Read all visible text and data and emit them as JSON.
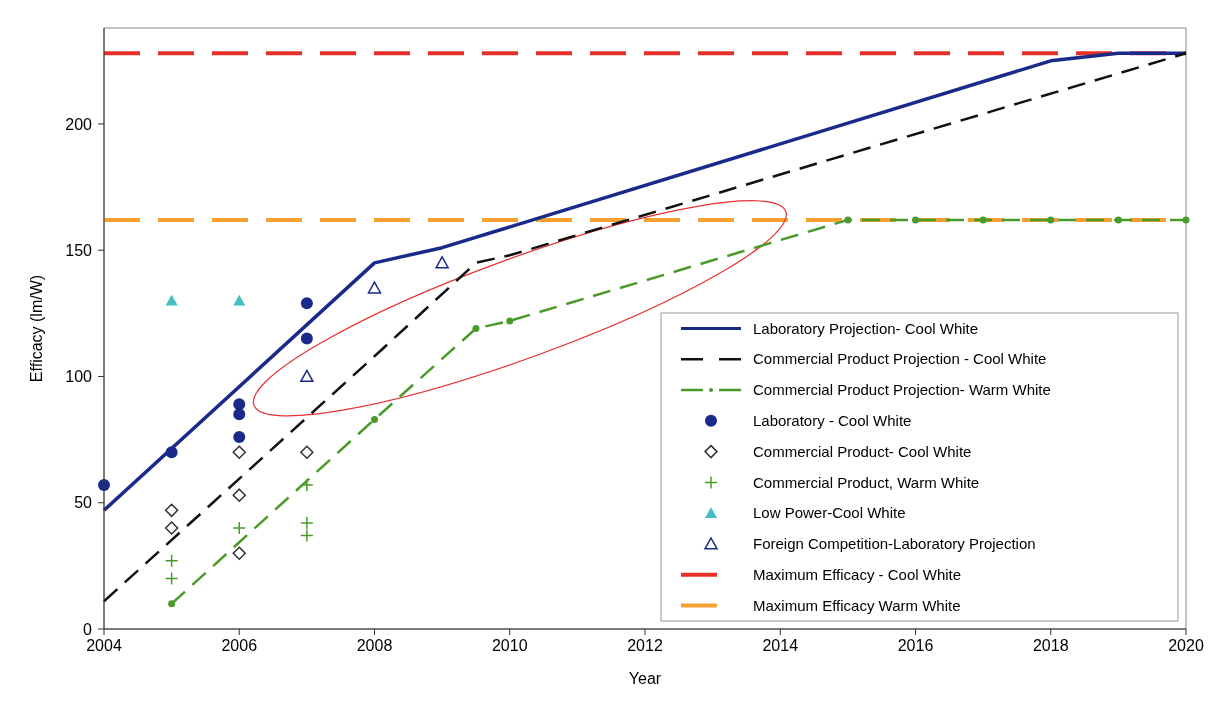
{
  "chart_data": {
    "type": "line",
    "xlabel": "Year",
    "ylabel": "Efficacy (lm/W)",
    "xlim": [
      2004,
      2020
    ],
    "xticks": [
      2004,
      2006,
      2008,
      2010,
      2012,
      2014,
      2016,
      2018,
      2020
    ],
    "ylim": [
      0,
      238
    ],
    "yticks": [
      0,
      50,
      100,
      150,
      200
    ],
    "grid": false,
    "legend": "bottom right",
    "series": [
      {
        "name": "Laboratory Projection- Cool White",
        "color": "#1a2a8a",
        "line_style": "solid",
        "marker": "none",
        "x": [
          2004,
          2008,
          2009,
          2018,
          2019,
          2020
        ],
        "values": [
          47,
          145,
          151,
          225,
          228,
          228
        ]
      },
      {
        "name": "Commercial Product Projection - Cool White",
        "color": "#111111",
        "line_style": "dashed",
        "marker": "none",
        "x": [
          2004,
          2008,
          2009.5,
          2010,
          2020
        ],
        "values": [
          11,
          108,
          145,
          148,
          228
        ]
      },
      {
        "name": "Commercial Product Projection- Warm White",
        "color": "#4a9a2a",
        "line_style": "dashed",
        "marker": "circle",
        "x": [
          2005,
          2008,
          2009.5,
          2010,
          2015,
          2016,
          2017,
          2018,
          2019,
          2020
        ],
        "values": [
          10,
          83,
          119,
          122,
          162,
          162,
          162,
          162,
          162,
          162
        ]
      },
      {
        "name": "Laboratory - Cool White",
        "type": "scatter",
        "color": "#1a2a8a",
        "marker": "circle",
        "x": [
          2004,
          2005,
          2006,
          2006,
          2006,
          2007,
          2007
        ],
        "values": [
          57,
          70,
          89,
          85,
          76,
          129,
          115
        ]
      },
      {
        "name": "Commercial Product- Cool White",
        "type": "scatter",
        "color": "#333333",
        "marker": "diamond",
        "x": [
          2005,
          2005,
          2006,
          2006,
          2006,
          2007
        ],
        "values": [
          47,
          40,
          70,
          53,
          30,
          70
        ]
      },
      {
        "name": "Commercial Product, Warm White",
        "type": "scatter",
        "color": "#4a9a2a",
        "marker": "cross",
        "x": [
          2005,
          2005,
          2006,
          2007,
          2007,
          2007
        ],
        "values": [
          27,
          20,
          40,
          57,
          42,
          37
        ]
      },
      {
        "name": "Low Power-Cool White",
        "type": "scatter",
        "color": "#40c0c0",
        "marker": "triangle",
        "x": [
          2005,
          2006
        ],
        "values": [
          130,
          130
        ]
      },
      {
        "name": "Foreign Competition-Laboratory Projection",
        "type": "scatter",
        "color": "#1a2a8a",
        "marker": "triangle-open",
        "x": [
          2007,
          2008,
          2009
        ],
        "values": [
          100,
          135,
          145
        ]
      }
    ],
    "ref_lines": [
      {
        "axis": "y",
        "value": 228,
        "label": "Maximum Efficacy - Cool White",
        "color": "#e8302a",
        "line_style": "dashed"
      },
      {
        "axis": "y",
        "value": 162,
        "label": "Maximum Efficacy Warm White",
        "color": "#f5a030",
        "line_style": "dashed"
      }
    ]
  }
}
